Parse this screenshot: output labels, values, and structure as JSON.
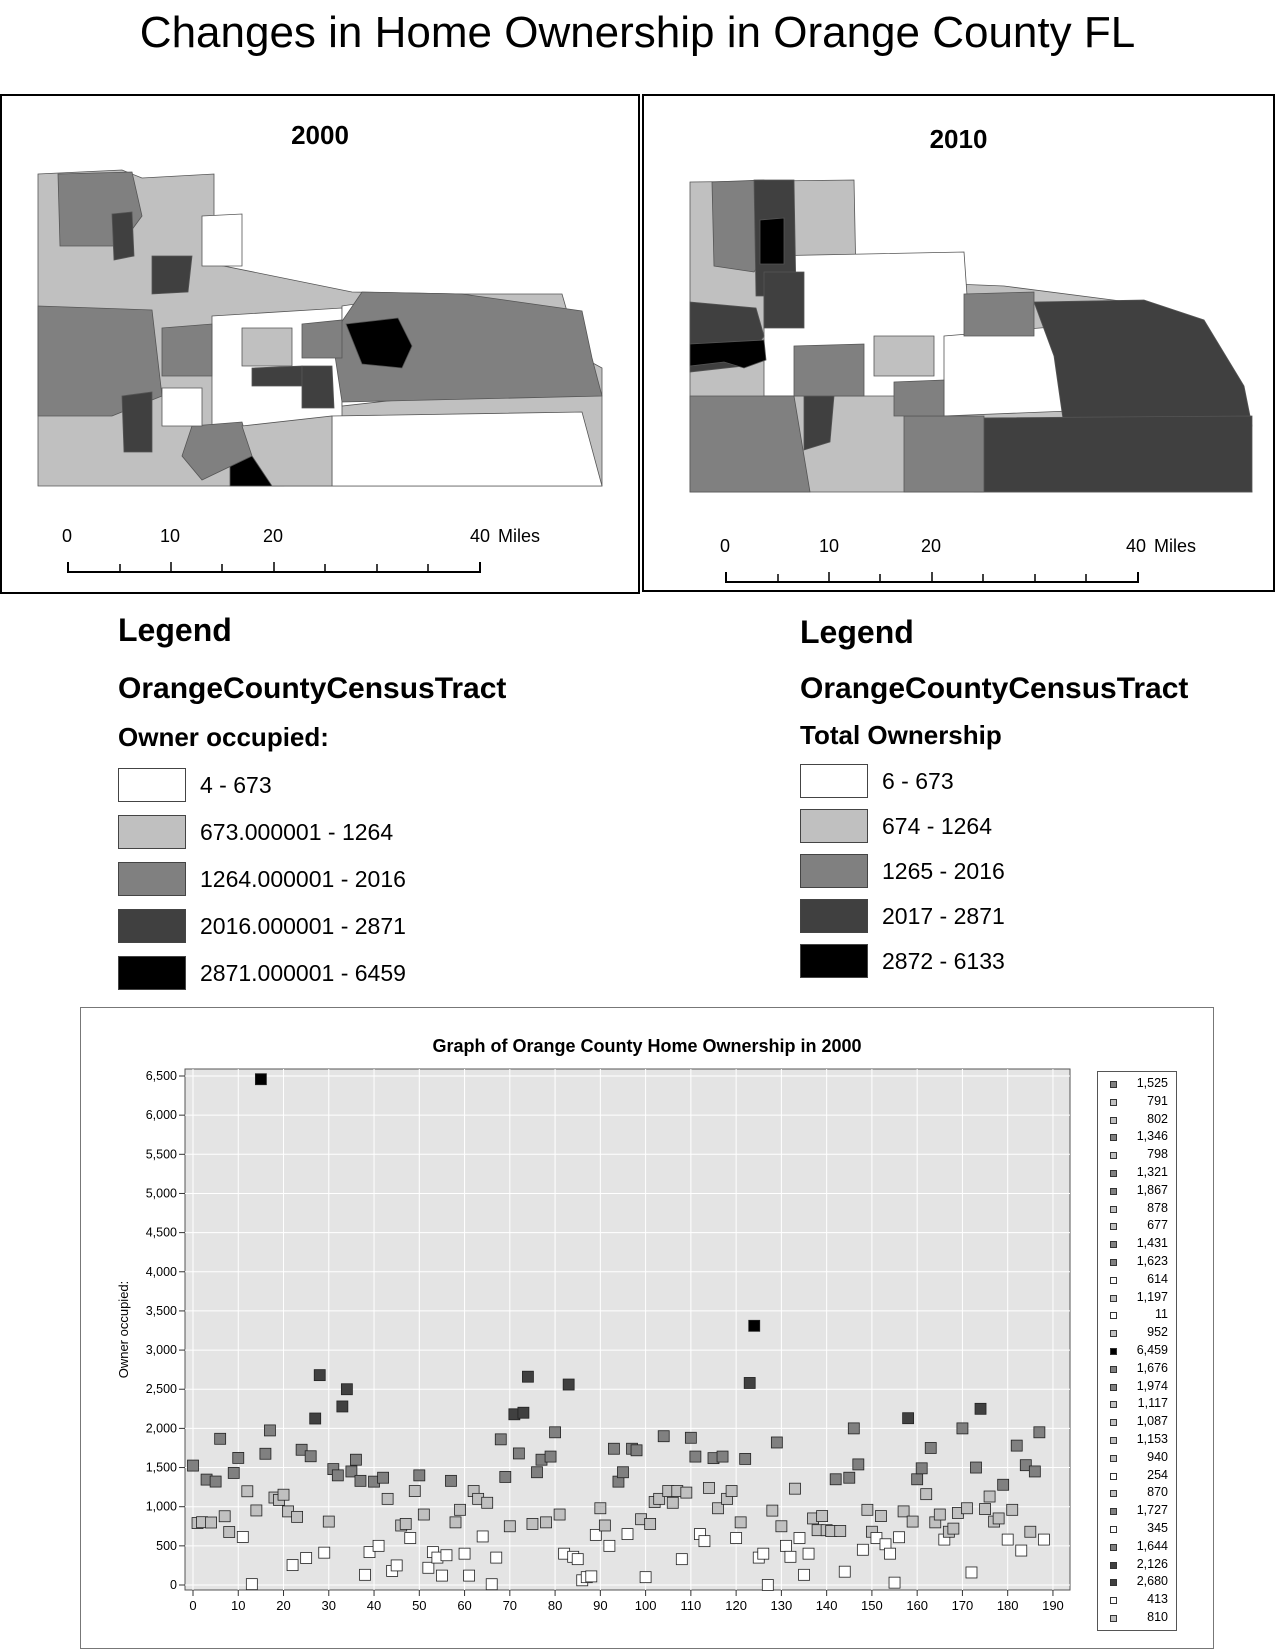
{
  "page": {
    "title": "Changes in Home Ownership in Orange County FL"
  },
  "maps": [
    {
      "year": "2000",
      "scale_labels": [
        "0",
        "10",
        "20",
        "40"
      ],
      "scale_unit": "Miles"
    },
    {
      "year": "2010",
      "scale_labels": [
        "0",
        "10",
        "20",
        "40"
      ],
      "scale_unit": "Miles"
    }
  ],
  "legends": [
    {
      "heading": "Legend",
      "layer": "OrangeCountyCensusTract",
      "field": "Owner occupied:",
      "classes": [
        {
          "label": "4 - 673",
          "color": "#ffffff"
        },
        {
          "label": "673.000001 - 1264",
          "color": "#c0c0c0"
        },
        {
          "label": "1264.000001 - 2016",
          "color": "#808080"
        },
        {
          "label": "2016.000001 - 2871",
          "color": "#404040"
        },
        {
          "label": "2871.000001 - 6459",
          "color": "#000000"
        }
      ]
    },
    {
      "heading": "Legend",
      "layer": "OrangeCountyCensusTract",
      "field": "Total Ownership",
      "classes": [
        {
          "label": "6 - 673",
          "color": "#ffffff"
        },
        {
          "label": "674 - 1264",
          "color": "#c0c0c0"
        },
        {
          "label": "1265 - 2016",
          "color": "#808080"
        },
        {
          "label": "2017 - 2871",
          "color": "#404040"
        },
        {
          "label": "2872 - 6133",
          "color": "#000000"
        }
      ]
    }
  ],
  "chart_data": {
    "type": "scatter",
    "title": "Graph of Orange County Home Ownership in 2000",
    "xlabel": "",
    "ylabel": "Owner occupied:",
    "xlim": [
      0,
      192
    ],
    "ylim": [
      0,
      6500
    ],
    "x_ticks": [
      "0",
      "10",
      "20",
      "30",
      "40",
      "50",
      "60",
      "70",
      "80",
      "90",
      "100",
      "110",
      "120",
      "130",
      "140",
      "150",
      "160",
      "170",
      "180",
      "190"
    ],
    "y_ticks": [
      "0",
      "500",
      "1,000",
      "1,500",
      "2,000",
      "2,500",
      "3,000",
      "3,500",
      "4,000",
      "4,500",
      "5,000",
      "5,500",
      "6,000",
      "6,500"
    ],
    "grid": true,
    "legend_position": "right",
    "legend_entries": [
      "1,525",
      "791",
      "802",
      "1,346",
      "798",
      "1,321",
      "1,867",
      "878",
      "677",
      "1,431",
      "1,623",
      "614",
      "1,197",
      "11",
      "952",
      "6,459",
      "1,676",
      "1,974",
      "1,117",
      "1,087",
      "1,153",
      "940",
      "254",
      "870",
      "1,727",
      "345",
      "1,644",
      "2,126",
      "2,680",
      "413",
      "810"
    ],
    "class_colors": [
      "#ffffff",
      "#c0c0c0",
      "#808080",
      "#404040",
      "#000000"
    ],
    "class_breaks": [
      673,
      1264,
      2016,
      2871
    ],
    "points": [
      [
        0,
        1525
      ],
      [
        1,
        791
      ],
      [
        2,
        802
      ],
      [
        3,
        1346
      ],
      [
        4,
        798
      ],
      [
        5,
        1321
      ],
      [
        6,
        1867
      ],
      [
        7,
        878
      ],
      [
        8,
        677
      ],
      [
        9,
        1431
      ],
      [
        10,
        1623
      ],
      [
        11,
        614
      ],
      [
        12,
        1197
      ],
      [
        13,
        11
      ],
      [
        14,
        952
      ],
      [
        15,
        6459
      ],
      [
        16,
        1676
      ],
      [
        17,
        1974
      ],
      [
        18,
        1117
      ],
      [
        19,
        1087
      ],
      [
        20,
        1153
      ],
      [
        21,
        940
      ],
      [
        22,
        254
      ],
      [
        23,
        870
      ],
      [
        24,
        1727
      ],
      [
        25,
        345
      ],
      [
        26,
        1644
      ],
      [
        27,
        2126
      ],
      [
        28,
        2680
      ],
      [
        29,
        413
      ],
      [
        30,
        810
      ],
      [
        31,
        1480
      ],
      [
        32,
        1400
      ],
      [
        33,
        2280
      ],
      [
        34,
        2500
      ],
      [
        35,
        1450
      ],
      [
        36,
        1600
      ],
      [
        37,
        1330
      ],
      [
        38,
        130
      ],
      [
        39,
        420
      ],
      [
        40,
        1320
      ],
      [
        41,
        500
      ],
      [
        42,
        1370
      ],
      [
        43,
        1100
      ],
      [
        44,
        180
      ],
      [
        45,
        250
      ],
      [
        46,
        760
      ],
      [
        47,
        780
      ],
      [
        48,
        600
      ],
      [
        49,
        1200
      ],
      [
        50,
        1400
      ],
      [
        51,
        900
      ],
      [
        52,
        220
      ],
      [
        53,
        420
      ],
      [
        54,
        350
      ],
      [
        55,
        120
      ],
      [
        56,
        380
      ],
      [
        57,
        1330
      ],
      [
        58,
        800
      ],
      [
        59,
        960
      ],
      [
        60,
        400
      ],
      [
        61,
        120
      ],
      [
        62,
        1200
      ],
      [
        63,
        1100
      ],
      [
        64,
        620
      ],
      [
        65,
        1050
      ],
      [
        66,
        10
      ],
      [
        67,
        350
      ],
      [
        68,
        1860
      ],
      [
        69,
        1380
      ],
      [
        70,
        750
      ],
      [
        71,
        2180
      ],
      [
        72,
        1680
      ],
      [
        73,
        2200
      ],
      [
        74,
        2660
      ],
      [
        75,
        780
      ],
      [
        76,
        1440
      ],
      [
        77,
        1600
      ],
      [
        78,
        800
      ],
      [
        79,
        1640
      ],
      [
        80,
        1950
      ],
      [
        81,
        900
      ],
      [
        82,
        400
      ],
      [
        83,
        2560
      ],
      [
        84,
        360
      ],
      [
        85,
        330
      ],
      [
        86,
        60
      ],
      [
        87,
        100
      ],
      [
        88,
        110
      ],
      [
        89,
        640
      ],
      [
        90,
        980
      ],
      [
        91,
        760
      ],
      [
        92,
        500
      ],
      [
        93,
        1740
      ],
      [
        94,
        1320
      ],
      [
        95,
        1440
      ],
      [
        96,
        650
      ],
      [
        97,
        1740
      ],
      [
        98,
        1720
      ],
      [
        99,
        840
      ],
      [
        100,
        100
      ],
      [
        101,
        780
      ],
      [
        102,
        1060
      ],
      [
        103,
        1100
      ],
      [
        104,
        1900
      ],
      [
        105,
        1200
      ],
      [
        106,
        1050
      ],
      [
        107,
        1200
      ],
      [
        108,
        330
      ],
      [
        109,
        1180
      ],
      [
        110,
        1880
      ],
      [
        111,
        1640
      ],
      [
        112,
        650
      ],
      [
        113,
        560
      ],
      [
        114,
        1240
      ],
      [
        115,
        1620
      ],
      [
        116,
        980
      ],
      [
        117,
        1640
      ],
      [
        118,
        1100
      ],
      [
        119,
        1200
      ],
      [
        120,
        600
      ],
      [
        121,
        800
      ],
      [
        122,
        1610
      ],
      [
        123,
        2580
      ],
      [
        124,
        3310
      ],
      [
        125,
        350
      ],
      [
        126,
        400
      ],
      [
        127,
        0
      ],
      [
        128,
        950
      ],
      [
        129,
        1820
      ],
      [
        130,
        750
      ],
      [
        131,
        500
      ],
      [
        132,
        360
      ],
      [
        133,
        1230
      ],
      [
        134,
        600
      ],
      [
        135,
        130
      ],
      [
        136,
        400
      ],
      [
        137,
        850
      ],
      [
        138,
        700
      ],
      [
        139,
        880
      ],
      [
        140,
        700
      ],
      [
        141,
        690
      ],
      [
        142,
        1350
      ],
      [
        143,
        690
      ],
      [
        144,
        170
      ],
      [
        145,
        1370
      ],
      [
        146,
        2000
      ],
      [
        147,
        1540
      ],
      [
        148,
        450
      ],
      [
        149,
        960
      ],
      [
        150,
        680
      ],
      [
        151,
        600
      ],
      [
        152,
        880
      ],
      [
        153,
        520
      ],
      [
        154,
        400
      ],
      [
        155,
        30
      ],
      [
        156,
        610
      ],
      [
        157,
        940
      ],
      [
        158,
        2130
      ],
      [
        159,
        810
      ],
      [
        160,
        1350
      ],
      [
        161,
        1490
      ],
      [
        162,
        1160
      ],
      [
        163,
        1750
      ],
      [
        164,
        800
      ],
      [
        165,
        900
      ],
      [
        166,
        580
      ],
      [
        167,
        680
      ],
      [
        168,
        720
      ],
      [
        169,
        920
      ],
      [
        170,
        2000
      ],
      [
        171,
        980
      ],
      [
        172,
        160
      ],
      [
        173,
        1500
      ],
      [
        174,
        2250
      ],
      [
        175,
        970
      ],
      [
        176,
        1130
      ],
      [
        177,
        810
      ],
      [
        178,
        850
      ],
      [
        179,
        1280
      ],
      [
        180,
        580
      ],
      [
        181,
        960
      ],
      [
        182,
        1780
      ],
      [
        183,
        440
      ],
      [
        184,
        1530
      ],
      [
        185,
        680
      ],
      [
        186,
        1450
      ],
      [
        187,
        1950
      ],
      [
        188,
        580
      ]
    ]
  }
}
